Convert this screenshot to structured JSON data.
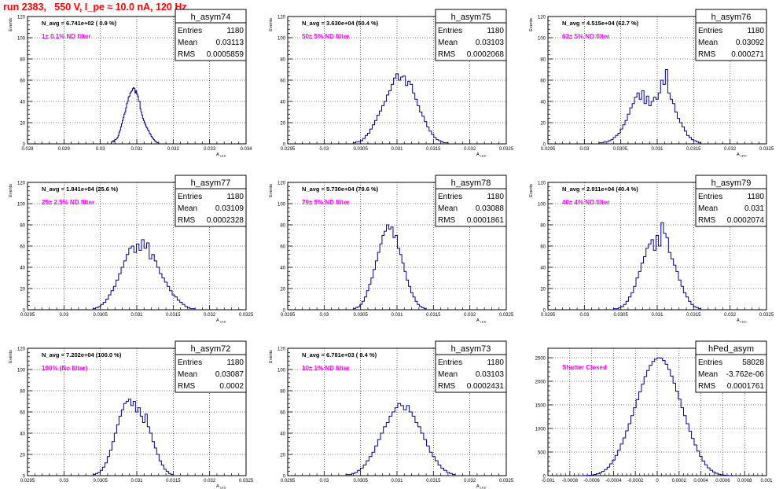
{
  "header": {
    "title": "run 2383,   550 V, I_pe ≈ 10.0 nA, 120 Hz"
  },
  "colors": {
    "hist_line": "#000099",
    "title_red": "#ff0000",
    "annotation_magenta": "#ff00ff",
    "frame": "#000000",
    "grid": "#000000"
  },
  "chart_data": [
    {
      "type": "histogram",
      "name": "h_asym74",
      "stats": [
        [
          "Entries",
          "1180"
        ],
        [
          "Mean",
          "0.03113"
        ],
        [
          "RMS",
          "0.0005859"
        ]
      ],
      "navg": "N_avg = 6.741e+02 ( 0.9 %)",
      "filter": "1± 0.1% ND filter",
      "ylabel": "Events",
      "xlabel": "A_LED",
      "xlim": [
        0.028,
        0.034
      ],
      "ylim": [
        0,
        120
      ],
      "xticks": [
        0.028,
        0.029,
        0.03,
        0.031,
        0.032,
        0.033,
        0.034
      ],
      "xticklabels": [
        "0.028",
        "0.029",
        "0.03",
        "0.031",
        "0.032",
        "0.033",
        "0.034"
      ],
      "yticks": [
        0,
        20,
        40,
        60,
        80,
        100,
        120
      ],
      "bins": [
        [
          0.0303,
          0.0316
        ],
        [
          2,
          2,
          3,
          2,
          4,
          4,
          5,
          6,
          8,
          11,
          13,
          16,
          19,
          22,
          25,
          28,
          30,
          34,
          38,
          40,
          44,
          45,
          48,
          49,
          50,
          52,
          53,
          52,
          48,
          50,
          47,
          45,
          40,
          40,
          33,
          30,
          27,
          24,
          22,
          20,
          18,
          16,
          15,
          13,
          12,
          10,
          9,
          7,
          6,
          5,
          4,
          3,
          2,
          2,
          1,
          1
        ]
      ]
    },
    {
      "type": "histogram",
      "name": "h_asym75",
      "stats": [
        [
          "Entries",
          "1180"
        ],
        [
          "Mean",
          "0.03103"
        ],
        [
          "RMS",
          "0.0002068"
        ]
      ],
      "navg": "N_avg = 3.630e+04 (50.4 %)",
      "filter": "50± 5% ND filter",
      "ylabel": "Events",
      "xlabel": "A_LED",
      "xlim": [
        0.0295,
        0.0325
      ],
      "ylim": [
        0,
        120
      ],
      "xticks": [
        0.0295,
        0.03,
        0.0305,
        0.031,
        0.0315,
        0.032,
        0.0325
      ],
      "xticklabels": [
        "0.0295",
        "0.03",
        "0.0305",
        "0.031",
        "0.0315",
        "0.032",
        "0.0325"
      ],
      "yticks": [
        0,
        20,
        40,
        60,
        80,
        100,
        120
      ],
      "bins": [
        [
          0.0304,
          0.0317
        ],
        [
          1,
          2,
          2,
          3,
          5,
          8,
          10,
          14,
          18,
          22,
          27,
          31,
          36,
          40,
          46,
          50,
          56,
          62,
          66,
          60,
          63,
          64,
          55,
          59,
          56,
          48,
          42,
          36,
          30,
          26,
          21,
          16,
          12,
          9,
          6,
          4,
          3,
          2,
          1,
          1
        ]
      ]
    },
    {
      "type": "histogram",
      "name": "h_asym76",
      "stats": [
        [
          "Entries",
          "1180"
        ],
        [
          "Mean",
          "0.03092"
        ],
        [
          "RMS",
          "0.000271"
        ]
      ],
      "navg": "N_avg = 4.515e+04 (62.7 %)",
      "filter": "63± 5% ND filter",
      "ylabel": "Events",
      "xlabel": "A_LED",
      "xlim": [
        0.0295,
        0.0325
      ],
      "ylim": [
        0,
        120
      ],
      "xticks": [
        0.0295,
        0.03,
        0.0305,
        0.031,
        0.0315,
        0.032,
        0.0325
      ],
      "xticklabels": [
        "0.0295",
        "0.03",
        "0.0305,",
        "0.031",
        "0.0315",
        "0.032",
        "0.0325"
      ],
      "yticks": [
        0,
        20,
        40,
        60,
        80,
        100,
        120
      ],
      "bins": [
        [
          0.0302,
          0.0316
        ],
        [
          1,
          1,
          2,
          2,
          3,
          4,
          6,
          8,
          10,
          14,
          18,
          22,
          28,
          34,
          38,
          44,
          48,
          42,
          50,
          38,
          45,
          36,
          40,
          44,
          42,
          48,
          60,
          56,
          70,
          48,
          42,
          38,
          30,
          24,
          20,
          16,
          12,
          8,
          6,
          4,
          3,
          2,
          1
        ]
      ]
    },
    {
      "type": "histogram",
      "name": "h_asym77",
      "stats": [
        [
          "Entries",
          "1180"
        ],
        [
          "Mean",
          "0.03109"
        ],
        [
          "RMS",
          "0.0002328"
        ]
      ],
      "navg": "N_avg = 1.841e+04 (25.6 %)",
      "filter": "25± 2.5% ND filter",
      "ylabel": "Events",
      "xlabel": "A_LED",
      "xlim": [
        0.0295,
        0.0325
      ],
      "ylim": [
        0,
        120
      ],
      "xticks": [
        0.0295,
        0.03,
        0.0305,
        0.031,
        0.0315,
        0.032,
        0.0325
      ],
      "xticklabels": [
        "0.0295",
        "0.03",
        "0.0305",
        "0.031",
        "0.0315",
        "0.032",
        "0.0325"
      ],
      "yticks": [
        0,
        20,
        40,
        60,
        80,
        100,
        120
      ],
      "bins": [
        [
          0.0304,
          0.0318
        ],
        [
          1,
          2,
          3,
          5,
          7,
          10,
          14,
          18,
          22,
          28,
          34,
          40,
          46,
          52,
          58,
          60,
          54,
          62,
          56,
          66,
          58,
          63,
          48,
          52,
          46,
          40,
          34,
          30,
          26,
          22,
          18,
          14,
          12,
          9,
          7,
          5,
          3,
          2,
          1,
          1
        ]
      ]
    },
    {
      "type": "histogram",
      "name": "h_asym78",
      "stats": [
        [
          "Entries",
          "1180"
        ],
        [
          "Mean",
          "0.03088"
        ],
        [
          "RMS",
          "0.0001861"
        ]
      ],
      "navg": "N_avg = 5.730e+04 (79.6 %)",
      "filter": "79± 5% ND filter",
      "ylabel": "Events",
      "xlabel": "A_LED",
      "xlim": [
        0.0295,
        0.0325
      ],
      "ylim": [
        0,
        120
      ],
      "xticks": [
        0.0295,
        0.03,
        0.0305,
        0.031,
        0.0315,
        0.032,
        0.0325
      ],
      "xticklabels": [
        "0.0295",
        "0.03",
        "0.0305",
        "0.031",
        "0.0315",
        "0.032",
        "0.0325"
      ],
      "yticks": [
        0,
        20,
        40,
        60,
        80,
        100,
        120
      ],
      "bins": [
        [
          0.0304,
          0.0314
        ],
        [
          1,
          2,
          3,
          5,
          8,
          12,
          18,
          24,
          30,
          38,
          46,
          54,
          62,
          70,
          74,
          80,
          76,
          78,
          68,
          70,
          58,
          52,
          44,
          36,
          28,
          22,
          16,
          12,
          8,
          5,
          3,
          2,
          1
        ]
      ]
    },
    {
      "type": "histogram",
      "name": "h_asym79",
      "stats": [
        [
          "Entries",
          "1180"
        ],
        [
          "Mean",
          "0.031"
        ],
        [
          "RMS",
          "0.0002074"
        ]
      ],
      "navg": "N_avg = 2.911e+04 (40.4 %)",
      "filter": "40± 4% ND filter",
      "ylabel": "Events",
      "xlabel": "A_LED",
      "xlim": [
        0.0295,
        0.0325
      ],
      "ylim": [
        0,
        120
      ],
      "xticks": [
        0.0295,
        0.03,
        0.0305,
        0.031,
        0.0315,
        0.032,
        0.0325
      ],
      "xticklabels": [
        "0.0295",
        "0.03",
        "0.0305",
        "0.031",
        "0.0315",
        "0.032",
        "0.0325"
      ],
      "yticks": [
        0,
        20,
        40,
        60,
        80,
        100,
        120
      ],
      "bins": [
        [
          0.0304,
          0.0316
        ],
        [
          1,
          1,
          2,
          3,
          5,
          8,
          12,
          16,
          22,
          30,
          36,
          44,
          50,
          58,
          62,
          66,
          56,
          70,
          60,
          82,
          72,
          68,
          54,
          48,
          42,
          36,
          28,
          22,
          16,
          12,
          8,
          5,
          3,
          2,
          1
        ]
      ]
    },
    {
      "type": "histogram",
      "name": "h_asym72",
      "stats": [
        [
          "Entries",
          "1180"
        ],
        [
          "Mean",
          "0.03087"
        ],
        [
          "RMS",
          "0.0002"
        ]
      ],
      "navg": "N_avg = 7.202e+04 (100.0 %)",
      "filter": "100% (No filter)",
      "ylabel": "Events",
      "xlabel": "A_LED",
      "xlim": [
        0.0295,
        0.0325
      ],
      "ylim": [
        0,
        120
      ],
      "xticks": [
        0.0295,
        0.03,
        0.0305,
        0.031,
        0.0315,
        0.032,
        0.0325
      ],
      "xticklabels": [
        "0.0295",
        "0.03",
        "0.0305",
        "0.031",
        "0.0315",
        "0.032",
        "0.0325"
      ],
      "yticks": [
        0,
        20,
        40,
        60,
        80,
        100,
        120
      ],
      "bins": [
        [
          0.0304,
          0.0315
        ],
        [
          1,
          2,
          3,
          5,
          8,
          12,
          18,
          24,
          32,
          40,
          48,
          56,
          62,
          68,
          70,
          72,
          66,
          70,
          60,
          64,
          56,
          50,
          58,
          46,
          40,
          32,
          26,
          20,
          14,
          10,
          6,
          4,
          2,
          1
        ]
      ]
    },
    {
      "type": "histogram",
      "name": "h_asym73",
      "stats": [
        [
          "Entries",
          "1180"
        ],
        [
          "Mean",
          "0.03103"
        ],
        [
          "RMS",
          "0.0002431"
        ]
      ],
      "navg": "N_avg = 6.781e+03 ( 9.4 %)",
      "filter": "10± 1% ND filter",
      "ylabel": "Events",
      "xlabel": "A_LED",
      "xlim": [
        0.0295,
        0.0325
      ],
      "ylim": [
        0,
        120
      ],
      "xticks": [
        0.0295,
        0.03,
        0.0305,
        0.031,
        0.0315,
        0.032,
        0.0325
      ],
      "xticklabels": [
        "0.0295",
        "0.03",
        "0.0305",
        "0.031",
        "0.0315",
        "0.032",
        "0.0325"
      ],
      "yticks": [
        0,
        20,
        40,
        60,
        80,
        100,
        120
      ],
      "bins": [
        [
          0.0303,
          0.0318
        ],
        [
          1,
          1,
          2,
          3,
          5,
          7,
          10,
          14,
          18,
          22,
          28,
          34,
          40,
          46,
          50,
          56,
          60,
          64,
          68,
          66,
          62,
          66,
          60,
          56,
          50,
          46,
          40,
          34,
          28,
          22,
          18,
          14,
          10,
          7,
          5,
          3,
          2,
          1
        ]
      ]
    },
    {
      "type": "histogram",
      "name": "hPed_asym",
      "stats": [
        [
          "Entries",
          "58028"
        ],
        [
          "Mean",
          "-3.762e-06"
        ],
        [
          "RMS",
          "0.0001761"
        ]
      ],
      "navg": "",
      "filter": "Shutter Closed",
      "ylabel": "",
      "xlabel": "",
      "xlim": [
        -0.001,
        0.001
      ],
      "ylim": [
        0,
        2700
      ],
      "xticks": [
        -0.001,
        -0.0008,
        -0.0006,
        -0.0004,
        -0.0002,
        0,
        0.0002,
        0.0004,
        0.0006,
        0.0008,
        0.001
      ],
      "xticklabels": [
        "-0.001",
        "-0.0008",
        "-0.0006",
        "-0.0004",
        "-0.0002",
        "0",
        "0.0002",
        "0.0004",
        "0.0006",
        "0.0008",
        "0.001"
      ],
      "yticks": [
        0,
        500,
        1000,
        1500,
        2000,
        2500
      ],
      "bins": [
        [
          -0.0007,
          0.0007
        ],
        [
          1,
          2,
          4,
          8,
          14,
          24,
          40,
          62,
          90,
          130,
          180,
          250,
          330,
          430,
          540,
          670,
          800,
          950,
          1100,
          1270,
          1440,
          1610,
          1780,
          1940,
          2100,
          2230,
          2340,
          2420,
          2470,
          2500,
          2490,
          2440,
          2360,
          2250,
          2110,
          1960,
          1790,
          1620,
          1440,
          1270,
          1100,
          940,
          790,
          650,
          520,
          410,
          310,
          230,
          165,
          115,
          78,
          50,
          30,
          18,
          10,
          5,
          3,
          2
        ]
      ]
    }
  ]
}
